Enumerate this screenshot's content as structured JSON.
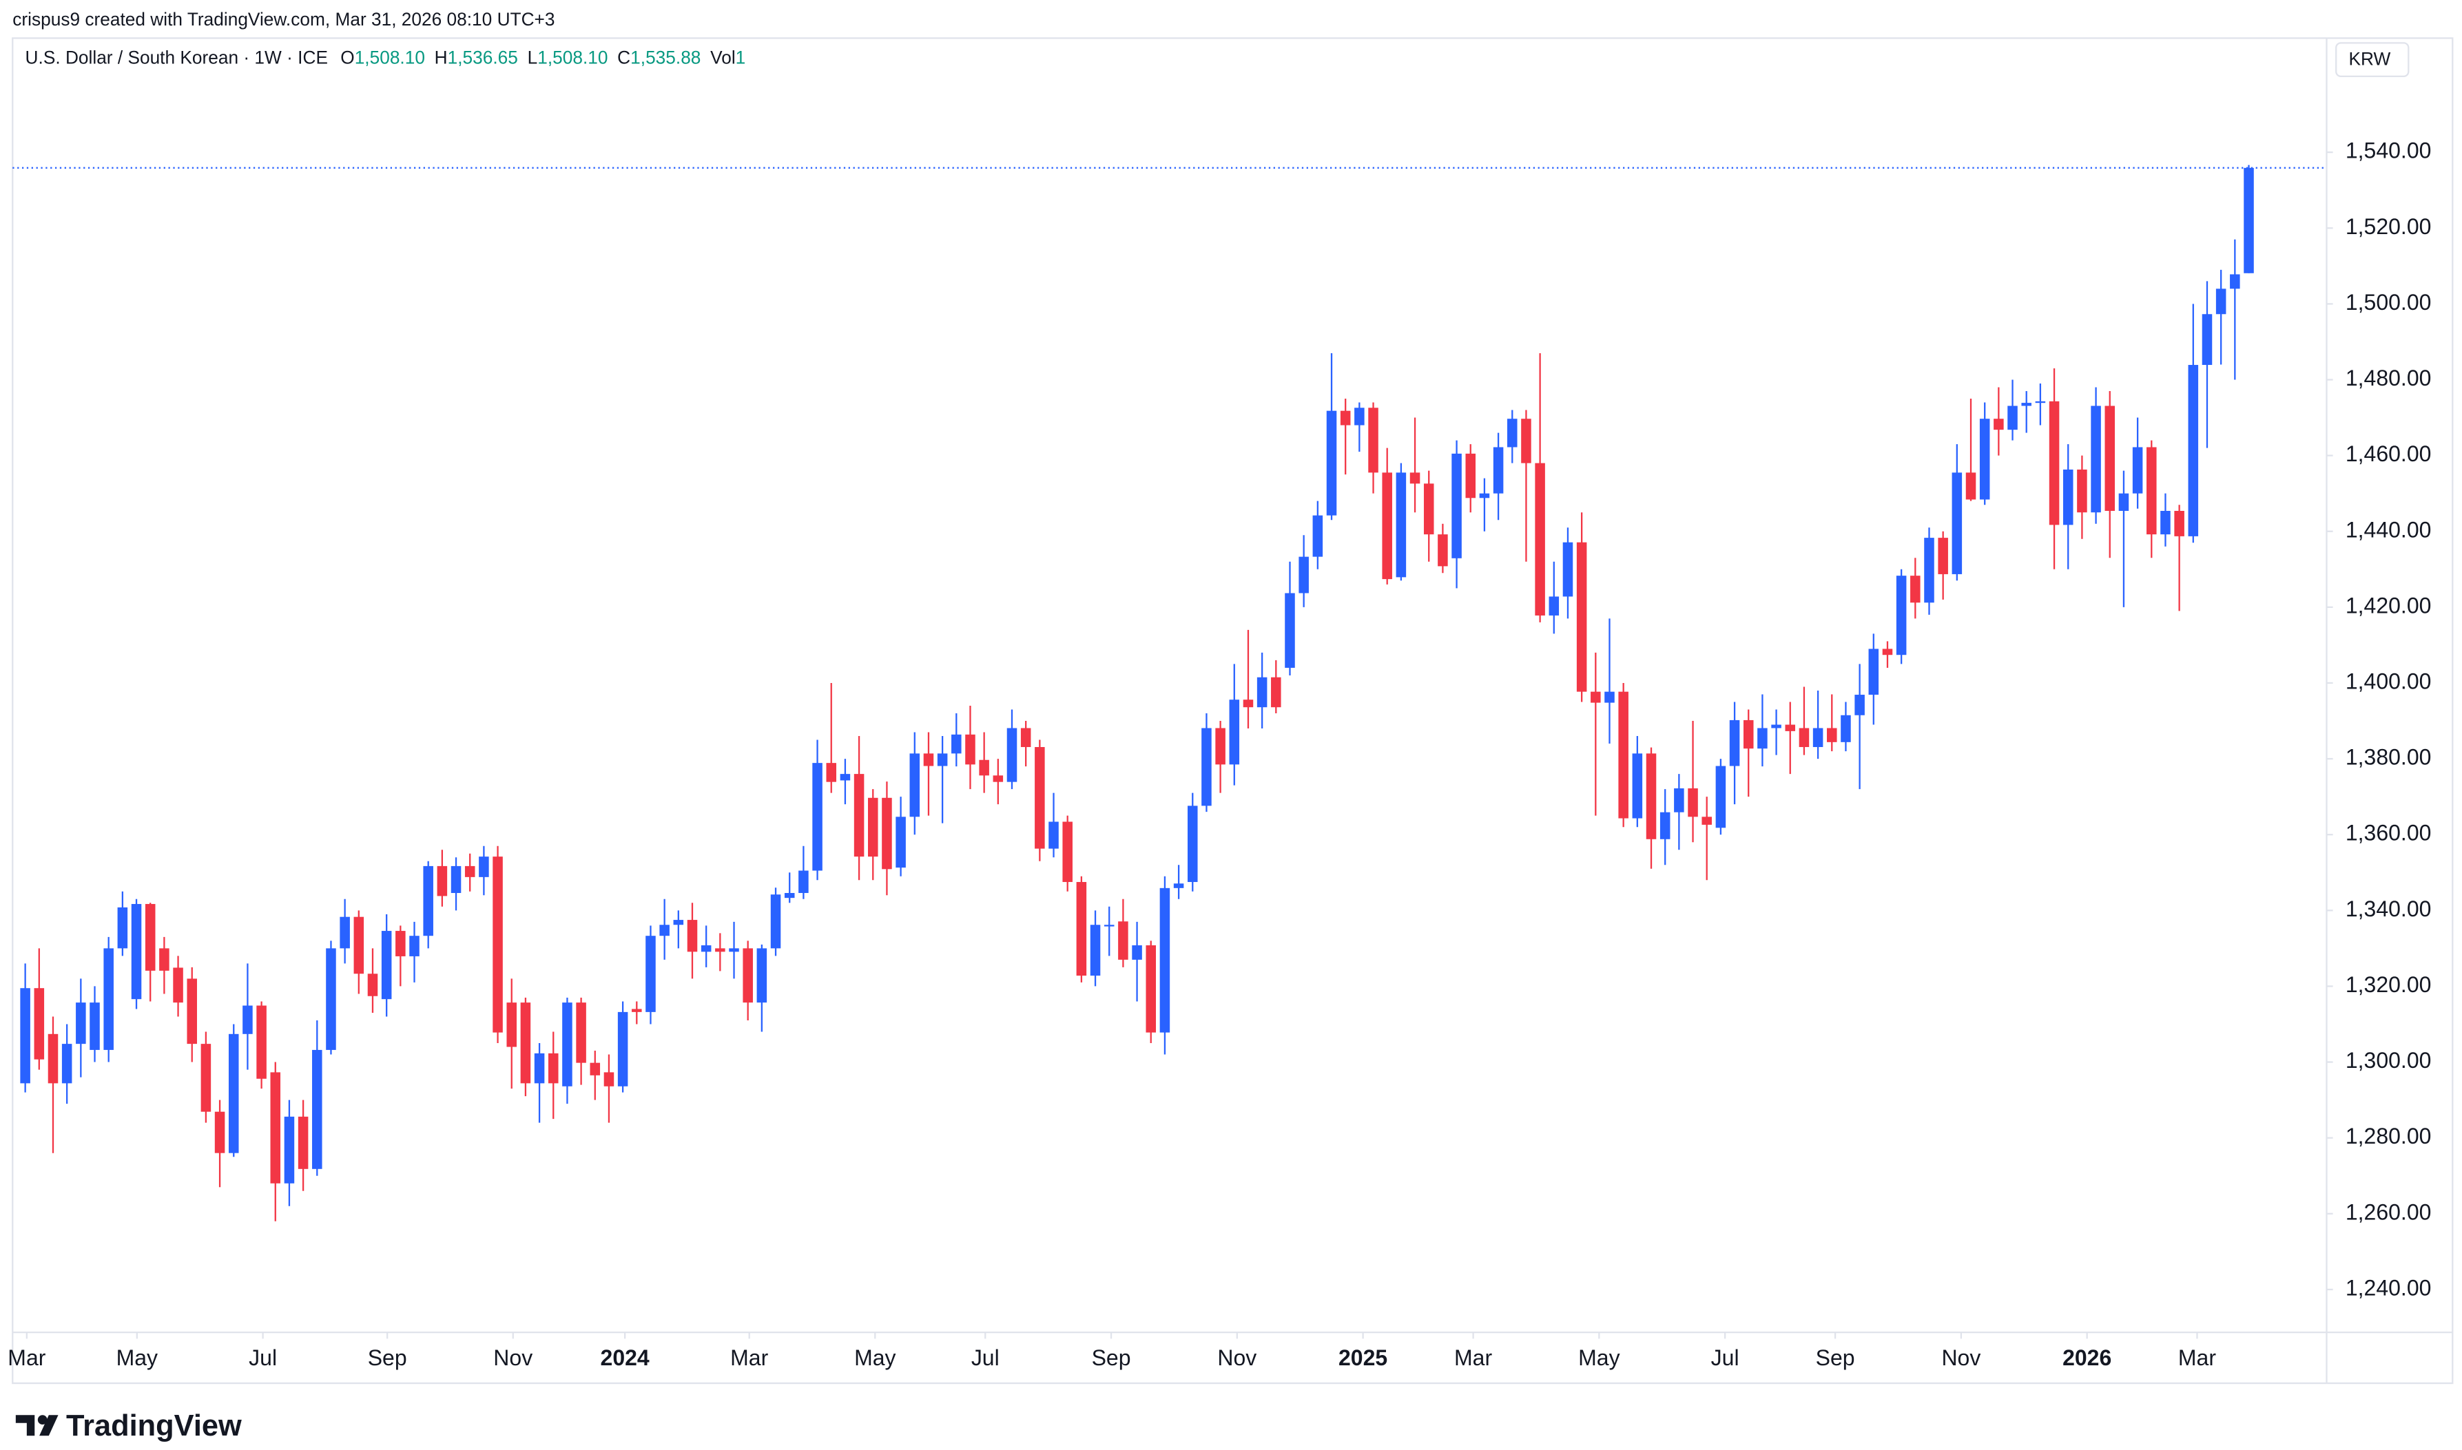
{
  "header": {
    "credit": "crispus9 created with TradingView.com, Mar 31, 2026 08:10 UTC+3",
    "symbol": "U.S. Dollar / South Korean · 1W · ICE",
    "ohlc": [
      {
        "label": "O",
        "value": "1,508.10"
      },
      {
        "label": "H",
        "value": "1,536.65"
      },
      {
        "label": "L",
        "value": "1,508.10"
      },
      {
        "label": "C",
        "value": "1,535.88"
      },
      {
        "label": "Vol",
        "value": "1"
      }
    ],
    "currency": "KRW",
    "logo": "TradingView"
  },
  "chart_data": {
    "type": "candlestick",
    "up_color": "#2962ff",
    "down_color": "#f23645",
    "open": [
      1294.4,
      1319.5,
      1307.4,
      1294.4,
      1304.8,
      1303.2,
      1303.2,
      1330.0,
      1316.6,
      1341.7,
      1330.0,
      1324.9,
      1322.0,
      1304.8,
      1286.9,
      1276.0,
      1307.4,
      1314.9,
      1297.3,
      1268.0,
      1285.6,
      1271.8,
      1303.2,
      1330.0,
      1338.3,
      1323.3,
      1316.6,
      1334.6,
      1327.9,
      1333.3,
      1351.7,
      1344.6,
      1351.7,
      1348.8,
      1354.2,
      1315.7,
      1315.7,
      1294.4,
      1302.3,
      1293.6,
      1315.7,
      1299.8,
      1297.3,
      1293.6,
      1314.0,
      1313.2,
      1333.3,
      1336.2,
      1337.5,
      1329.1,
      1330.0,
      1329.1,
      1330.0,
      1315.7,
      1330.0,
      1343.3,
      1344.6,
      1350.5,
      1378.9,
      1374.3,
      1376.0,
      1369.7,
      1369.7,
      1351.3,
      1364.7,
      1381.4,
      1378.1,
      1381.4,
      1386.4,
      1379.7,
      1375.6,
      1373.9,
      1388.1,
      1383.1,
      1356.3,
      1363.4,
      1347.5,
      1322.8,
      1335.8,
      1337.1,
      1327.0,
      1330.8,
      1307.8,
      1345.9,
      1347.5,
      1367.6,
      1388.1,
      1378.5,
      1395.6,
      1393.6,
      1401.5,
      1404.0,
      1423.7,
      1433.3,
      1444.2,
      1471.8,
      1468.0,
      1472.6,
      1455.5,
      1427.9,
      1455.5,
      1452.6,
      1439.2,
      1432.9,
      1460.5,
      1448.8,
      1450.0,
      1462.2,
      1469.7,
      1458.0,
      1417.8,
      1422.8,
      1437.1,
      1397.7,
      1394.8,
      1397.7,
      1364.3,
      1381.4,
      1358.8,
      1365.9,
      1372.2,
      1364.7,
      1361.8,
      1378.1,
      1390.2,
      1382.7,
      1388.1,
      1389.0,
      1388.1,
      1383.1,
      1388.1,
      1384.4,
      1391.5,
      1396.9,
      1409.0,
      1407.4,
      1428.3,
      1421.2,
      1438.3,
      1428.7,
      1455.5,
      1448.4,
      1469.7,
      1466.8,
      1473.1,
      1473.9,
      1474.3,
      1441.7,
      1456.3,
      1445.0,
      1473.1,
      1445.4,
      1450.0,
      1462.2,
      1439.2,
      1445.4,
      1438.7,
      1483.9,
      1497.3,
      1504.0,
      1508.1
    ],
    "high": [
      1326,
      1330,
      1312,
      1310,
      1322,
      1320,
      1333,
      1345,
      1343,
      1342,
      1333,
      1328,
      1325,
      1308,
      1290,
      1310,
      1326,
      1316,
      1300,
      1290,
      1290,
      1311,
      1332,
      1343,
      1340,
      1330,
      1339,
      1336,
      1337,
      1353,
      1356,
      1354,
      1355,
      1357,
      1357,
      1322,
      1317,
      1305,
      1308,
      1317,
      1317,
      1303,
      1302,
      1316,
      1316,
      1336,
      1343,
      1340,
      1342,
      1336,
      1334,
      1337,
      1332,
      1331,
      1346,
      1350,
      1357,
      1385,
      1400,
      1380,
      1386,
      1372,
      1374,
      1370,
      1387,
      1387,
      1386,
      1392,
      1394,
      1387,
      1380,
      1393,
      1390,
      1385,
      1371,
      1365,
      1349,
      1340,
      1341,
      1343,
      1337,
      1332,
      1349,
      1352,
      1371,
      1392,
      1390,
      1405,
      1414,
      1408,
      1406,
      1432,
      1439,
      1448,
      1487,
      1475,
      1474,
      1474,
      1462,
      1458,
      1470,
      1456,
      1442,
      1464,
      1463,
      1454,
      1466,
      1472,
      1472,
      1487,
      1432,
      1441,
      1445,
      1408,
      1417,
      1400,
      1386,
      1383,
      1372,
      1376,
      1390,
      1370,
      1380,
      1395,
      1393,
      1397,
      1393,
      1395,
      1399,
      1398,
      1397,
      1395,
      1405,
      1413,
      1411,
      1430,
      1433,
      1441,
      1440,
      1463,
      1475,
      1474,
      1478,
      1480,
      1477,
      1479,
      1483,
      1463,
      1460,
      1478,
      1477,
      1456,
      1470,
      1464,
      1450,
      1447,
      1500,
      1506,
      1509,
      1517,
      1536.65
    ],
    "low": [
      1292,
      1298,
      1276,
      1289,
      1296,
      1300,
      1300,
      1328,
      1314,
      1316,
      1318,
      1312,
      1300,
      1284,
      1267,
      1275,
      1298,
      1293,
      1258,
      1262,
      1266,
      1270,
      1302,
      1326,
      1318,
      1313,
      1312,
      1320,
      1321,
      1330,
      1341,
      1340,
      1345,
      1344,
      1305,
      1293,
      1291,
      1284,
      1285,
      1289,
      1294,
      1290,
      1284,
      1292,
      1310,
      1310,
      1327,
      1330,
      1322,
      1325,
      1324,
      1322,
      1311,
      1308,
      1328,
      1342,
      1343,
      1348,
      1371,
      1368,
      1348,
      1348,
      1344,
      1349,
      1360,
      1365,
      1363,
      1378,
      1372,
      1371,
      1368,
      1372,
      1378,
      1353,
      1354,
      1345,
      1321,
      1320,
      1328,
      1325,
      1316,
      1305,
      1302,
      1343,
      1345,
      1366,
      1371,
      1373,
      1388,
      1388,
      1392,
      1402,
      1420,
      1430,
      1443,
      1455,
      1461,
      1450,
      1426,
      1427,
      1445,
      1432,
      1429,
      1425,
      1445,
      1440,
      1443,
      1458,
      1432,
      1416,
      1413,
      1417,
      1395,
      1365,
      1384,
      1362,
      1362,
      1351,
      1352,
      1356,
      1358,
      1348,
      1360,
      1368,
      1370,
      1378,
      1381,
      1376,
      1381,
      1380,
      1382,
      1382,
      1372,
      1389,
      1404,
      1405,
      1417,
      1418,
      1422,
      1427,
      1448,
      1447,
      1460,
      1464,
      1466,
      1468,
      1430,
      1430,
      1438,
      1442,
      1433,
      1420,
      1446,
      1433,
      1436,
      1419,
      1437,
      1462,
      1484,
      1480,
      1508.1
    ],
    "close": [
      1319.5,
      1300.7,
      1294.4,
      1304.8,
      1315.7,
      1315.7,
      1330.0,
      1340.8,
      1341.7,
      1324.1,
      1324.1,
      1315.7,
      1304.8,
      1286.9,
      1276.0,
      1307.4,
      1314.9,
      1295.6,
      1268.0,
      1285.6,
      1271.8,
      1303.2,
      1330.0,
      1338.3,
      1323.3,
      1317.4,
      1334.6,
      1327.9,
      1333.3,
      1351.7,
      1343.8,
      1351.7,
      1348.8,
      1354.2,
      1307.8,
      1304.0,
      1294.4,
      1302.3,
      1294.4,
      1315.7,
      1299.8,
      1296.5,
      1293.6,
      1313.2,
      1313.2,
      1333.3,
      1336.2,
      1337.5,
      1329.1,
      1330.8,
      1329.1,
      1330.0,
      1315.7,
      1330.0,
      1344.2,
      1344.6,
      1350.5,
      1378.9,
      1373.9,
      1376.0,
      1354.2,
      1354.2,
      1350.9,
      1364.7,
      1381.4,
      1378.1,
      1381.4,
      1386.4,
      1378.5,
      1375.6,
      1373.9,
      1388.1,
      1383.1,
      1356.3,
      1363.4,
      1347.5,
      1322.8,
      1336.2,
      1336.2,
      1327.0,
      1330.8,
      1307.8,
      1345.9,
      1347.1,
      1367.6,
      1388.1,
      1378.5,
      1395.6,
      1393.6,
      1401.5,
      1393.6,
      1423.7,
      1433.3,
      1444.2,
      1471.8,
      1468.0,
      1472.6,
      1455.5,
      1427.4,
      1455.5,
      1452.6,
      1439.2,
      1430.8,
      1460.5,
      1448.8,
      1450.0,
      1462.2,
      1469.7,
      1458.0,
      1417.8,
      1422.8,
      1437.1,
      1397.7,
      1394.8,
      1397.7,
      1364.3,
      1381.4,
      1358.8,
      1365.9,
      1372.2,
      1364.7,
      1362.6,
      1378.1,
      1390.2,
      1382.7,
      1388.1,
      1389.0,
      1387.3,
      1383.1,
      1388.1,
      1384.4,
      1391.5,
      1396.9,
      1409.0,
      1407.4,
      1428.3,
      1421.2,
      1438.3,
      1428.7,
      1455.5,
      1448.4,
      1469.7,
      1466.8,
      1473.1,
      1473.9,
      1474.3,
      1441.7,
      1456.3,
      1445.0,
      1473.1,
      1445.4,
      1450.0,
      1462.2,
      1439.2,
      1445.4,
      1438.7,
      1483.9,
      1497.3,
      1504.0,
      1507.8,
      1535.88
    ],
    "xlim": [
      -0.91,
      165.6
    ],
    "xticks": [
      {
        "value": 0.11,
        "label": "Mar"
      },
      {
        "value": 8.04,
        "label": "May"
      },
      {
        "value": 17.1,
        "label": "Jul"
      },
      {
        "value": 26.05,
        "label": "Sep"
      },
      {
        "value": 35.1,
        "label": "Nov"
      },
      {
        "value": 43.15,
        "label": "2024"
      },
      {
        "value": 52.1,
        "label": "Mar"
      },
      {
        "value": 61.15,
        "label": "May"
      },
      {
        "value": 69.08,
        "label": "Jul"
      },
      {
        "value": 78.14,
        "label": "Sep"
      },
      {
        "value": 87.2,
        "label": "Nov"
      },
      {
        "value": 96.26,
        "label": "2025"
      },
      {
        "value": 104.19,
        "label": "Mar"
      },
      {
        "value": 113.25,
        "label": "May"
      },
      {
        "value": 122.31,
        "label": "Jul"
      },
      {
        "value": 130.24,
        "label": "Sep"
      },
      {
        "value": 139.3,
        "label": "Nov"
      },
      {
        "value": 148.36,
        "label": "2026"
      },
      {
        "value": 156.28,
        "label": "Mar"
      }
    ],
    "ylim": [
      1228.7,
      1570.1
    ],
    "yticks": [
      {
        "value": 1240,
        "label": "1,240.00"
      },
      {
        "value": 1260,
        "label": "1,260.00"
      },
      {
        "value": 1280,
        "label": "1,280.00"
      },
      {
        "value": 1300,
        "label": "1,300.00"
      },
      {
        "value": 1320,
        "label": "1,320.00"
      },
      {
        "value": 1340,
        "label": "1,340.00"
      },
      {
        "value": 1360,
        "label": "1,360.00"
      },
      {
        "value": 1380,
        "label": "1,380.00"
      },
      {
        "value": 1400,
        "label": "1,400.00"
      },
      {
        "value": 1420,
        "label": "1,420.00"
      },
      {
        "value": 1440,
        "label": "1,440.00"
      },
      {
        "value": 1460,
        "label": "1,460.00"
      },
      {
        "value": 1480,
        "label": "1,480.00"
      },
      {
        "value": 1500,
        "label": "1,500.00"
      },
      {
        "value": 1520,
        "label": "1,520.00"
      },
      {
        "value": 1540,
        "label": "1,540.00"
      }
    ],
    "price_line": true
  }
}
